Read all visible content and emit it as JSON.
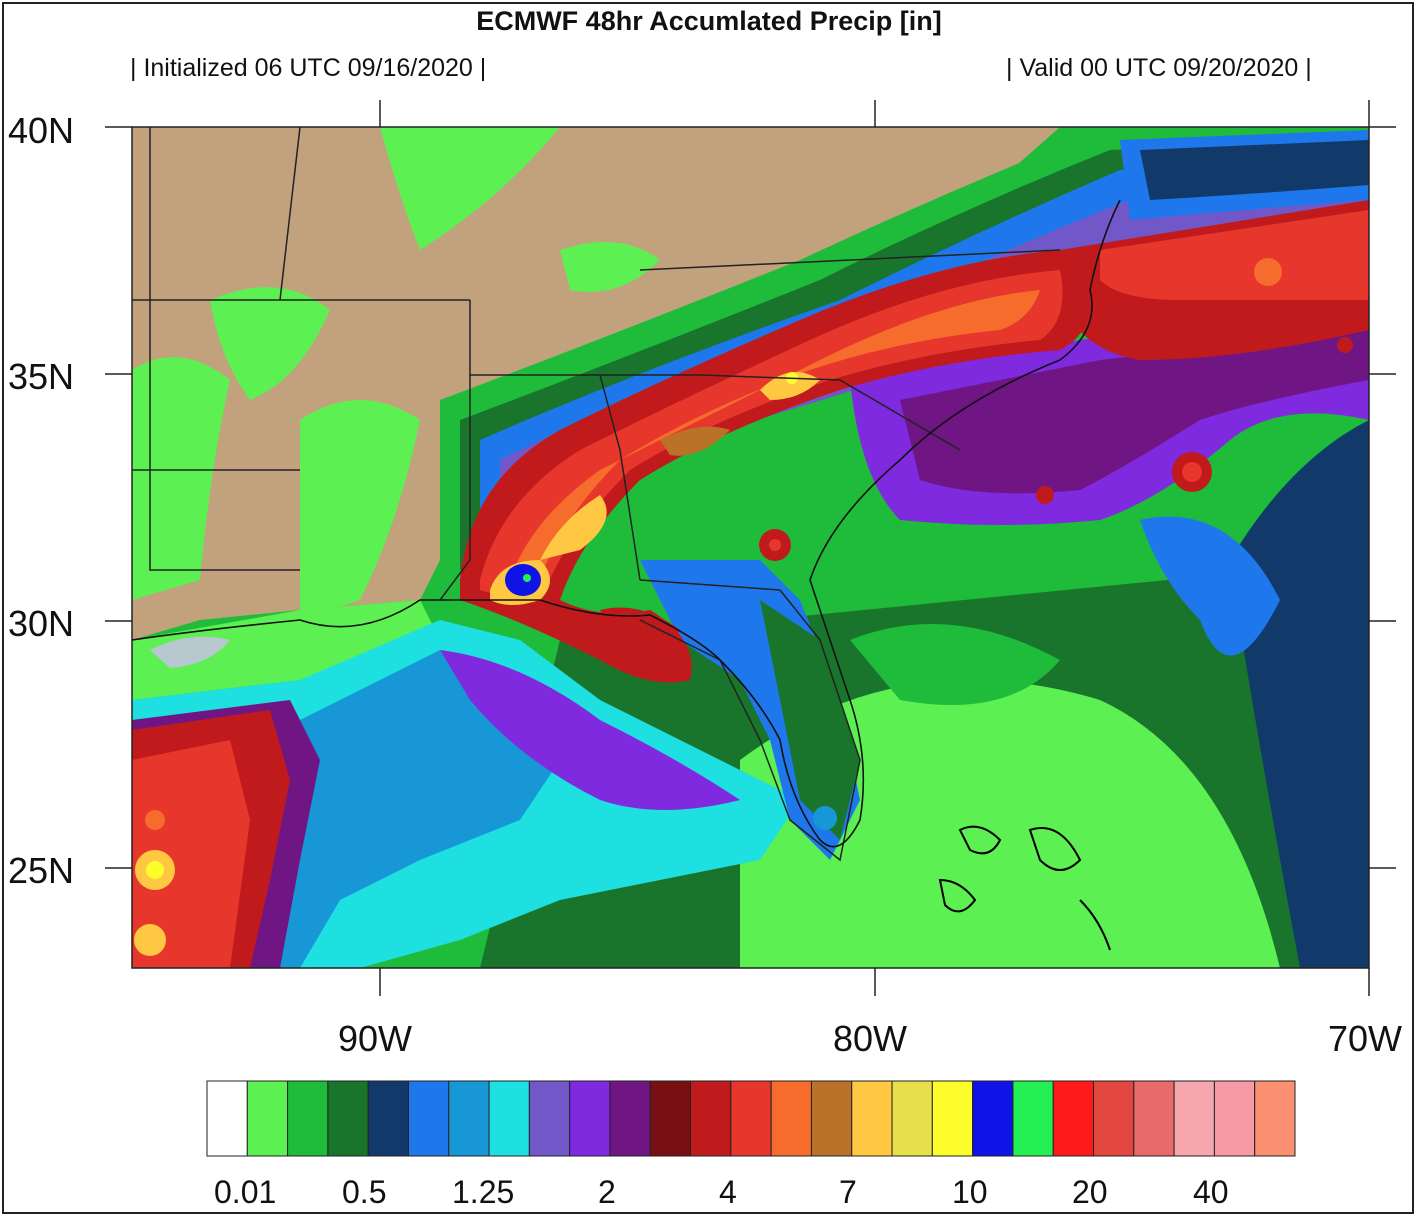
{
  "title": "ECMWF 48hr Accumlated Precip [in]",
  "subtitle_left": "| Initialized 06 UTC 09/16/2020 |",
  "subtitle_right": "| Valid 00 UTC 09/20/2020  |",
  "lat_labels": [
    "40N",
    "35N",
    "30N",
    "25N"
  ],
  "lon_labels": [
    "90W",
    "80W",
    "70W"
  ],
  "colorbar": {
    "colors": [
      "#ffffff",
      "#5cf053",
      "#1fbb3b",
      "#19752b",
      "#113a6a",
      "#1e78ec",
      "#1897d6",
      "#1ee0e0",
      "#7158c8",
      "#7f2adf",
      "#6f1684",
      "#781013",
      "#c11a1d",
      "#e7372d",
      "#f56c2c",
      "#ba7228",
      "#ffc843",
      "#e8e04a",
      "#fdfd2c",
      "#0f13e5",
      "#23ef53",
      "#ff1a1a",
      "#e2473f",
      "#e86a6a",
      "#f6a7ae",
      "#f899a6",
      "#fa8f72"
    ],
    "tick_labels": [
      "0.01",
      "0.5",
      "1.25",
      "2",
      "4",
      "7",
      "10",
      "20",
      "40"
    ]
  },
  "map_colors": {
    "land_dry": "#c2a27c",
    "gulf_lake": "#b9c7cf"
  }
}
